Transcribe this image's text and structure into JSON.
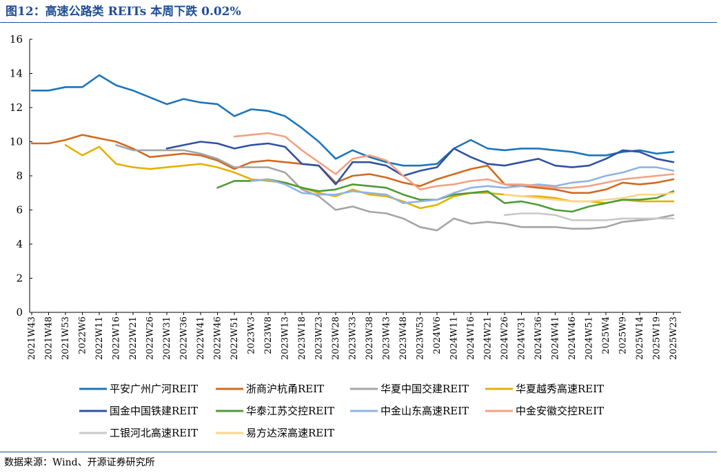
{
  "figure": {
    "title": "图12：高速公路类 REITs 本周下跌 0.02%",
    "source": "数据来源：Wind、开源证券研究所"
  },
  "chart_data": {
    "type": "line",
    "title": "",
    "xlabel": "",
    "ylabel": "",
    "ylim": [
      0,
      16
    ],
    "yticks": [
      0,
      2,
      4,
      6,
      8,
      10,
      12,
      14,
      16
    ],
    "grid": false,
    "legend_position": "bottom",
    "x": [
      "2021W43",
      "2021W48",
      "2021W53",
      "2022W6",
      "2022W11",
      "2022W16",
      "2022W21",
      "2022W26",
      "2022W31",
      "2022W36",
      "2022W41",
      "2022W46",
      "2022W51",
      "2023W3",
      "2023W8",
      "2023W13",
      "2023W18",
      "2023W23",
      "2023W28",
      "2023W33",
      "2023W38",
      "2023W43",
      "2023W48",
      "2023W53",
      "2024W6",
      "2024W11",
      "2024W16",
      "2024W21",
      "2024W26",
      "2024W31",
      "2024W36",
      "2024W41",
      "2024W46",
      "2024W51",
      "2025W4",
      "2025W9",
      "2025W14",
      "2025W19",
      "2025W23"
    ],
    "series": [
      {
        "name": "平安广州广河REIT",
        "color": "#1b75bb",
        "values": [
          13.0,
          13.0,
          13.2,
          13.2,
          13.9,
          13.3,
          13.0,
          12.6,
          12.2,
          12.5,
          12.3,
          12.2,
          11.5,
          11.9,
          11.8,
          11.5,
          10.8,
          10.0,
          9.0,
          9.5,
          9.1,
          8.8,
          8.6,
          8.6,
          8.7,
          9.6,
          10.1,
          9.6,
          9.5,
          9.6,
          9.6,
          9.5,
          9.4,
          9.2,
          9.2,
          9.4,
          9.5,
          9.3,
          9.4
        ]
      },
      {
        "name": "浙商沪杭甬REIT",
        "color": "#d2691e",
        "values": [
          9.9,
          9.9,
          10.1,
          10.4,
          10.2,
          10.0,
          9.6,
          9.1,
          9.2,
          9.3,
          9.2,
          8.9,
          8.4,
          8.8,
          8.9,
          8.8,
          8.7,
          8.6,
          7.6,
          8.0,
          8.1,
          7.9,
          7.6,
          7.4,
          7.8,
          8.1,
          8.4,
          8.6,
          7.5,
          7.4,
          7.3,
          7.2,
          7.0,
          7.0,
          7.2,
          7.6,
          7.5,
          7.6,
          7.8
        ]
      },
      {
        "name": "华夏中国交建REIT",
        "color": "#a5a5a5",
        "values": [
          null,
          null,
          null,
          null,
          null,
          9.8,
          9.5,
          9.5,
          9.5,
          9.5,
          9.3,
          9.0,
          8.5,
          8.5,
          8.5,
          8.2,
          7.2,
          6.8,
          6.0,
          6.2,
          5.9,
          5.8,
          5.5,
          5.0,
          4.8,
          5.5,
          5.2,
          5.3,
          5.2,
          5.0,
          5.0,
          5.0,
          4.9,
          4.9,
          5.0,
          5.3,
          5.4,
          5.5,
          5.7
        ]
      },
      {
        "name": "华夏越秀高速REIT",
        "color": "#e5b100",
        "values": [
          null,
          null,
          9.8,
          9.2,
          9.7,
          8.7,
          8.5,
          8.4,
          8.5,
          8.6,
          8.7,
          8.5,
          8.2,
          7.8,
          7.7,
          7.6,
          7.3,
          7.0,
          6.8,
          7.2,
          6.9,
          6.8,
          6.5,
          6.1,
          6.3,
          6.8,
          7.0,
          7.0,
          6.9,
          6.8,
          6.8,
          6.7,
          6.5,
          6.5,
          6.4,
          6.6,
          6.5,
          6.5,
          6.5
        ]
      },
      {
        "name": "国金中国铁建REIT",
        "color": "#2f52a0",
        "values": [
          null,
          null,
          null,
          null,
          null,
          null,
          null,
          null,
          9.6,
          9.8,
          10.0,
          9.9,
          9.6,
          9.8,
          9.9,
          9.7,
          8.7,
          8.6,
          7.5,
          8.8,
          8.8,
          8.6,
          8.0,
          8.3,
          8.5,
          9.6,
          9.1,
          8.7,
          8.6,
          8.8,
          9.0,
          8.6,
          8.5,
          8.6,
          9.0,
          9.5,
          9.4,
          9.0,
          8.8
        ]
      },
      {
        "name": "华泰江苏交控REIT",
        "color": "#4f9a36",
        "values": [
          null,
          null,
          null,
          null,
          null,
          null,
          null,
          null,
          null,
          null,
          null,
          7.3,
          7.7,
          7.7,
          7.8,
          7.6,
          7.3,
          7.1,
          7.2,
          7.5,
          7.4,
          7.3,
          6.9,
          6.6,
          6.6,
          6.9,
          7.0,
          7.1,
          6.4,
          6.5,
          6.3,
          6.0,
          5.9,
          6.2,
          6.4,
          6.6,
          6.6,
          6.7,
          7.1
        ]
      },
      {
        "name": "中金山东高速REIT",
        "color": "#8eb4e3",
        "values": [
          null,
          null,
          null,
          null,
          null,
          null,
          null,
          null,
          null,
          null,
          null,
          null,
          null,
          7.7,
          7.8,
          7.5,
          7.0,
          6.9,
          6.9,
          7.1,
          7.0,
          6.9,
          6.4,
          6.5,
          6.6,
          7.0,
          7.3,
          7.4,
          7.3,
          7.4,
          7.5,
          7.4,
          7.6,
          7.7,
          8.0,
          8.2,
          8.5,
          8.5,
          8.3
        ]
      },
      {
        "name": "中金安徽交控REIT",
        "color": "#f2a182",
        "values": [
          null,
          null,
          null,
          null,
          null,
          null,
          null,
          null,
          null,
          null,
          null,
          null,
          10.3,
          10.4,
          10.5,
          10.3,
          9.5,
          8.8,
          8.1,
          9.0,
          9.2,
          8.9,
          8.0,
          7.2,
          7.4,
          7.5,
          7.7,
          7.8,
          7.5,
          7.5,
          7.4,
          7.3,
          7.3,
          7.4,
          7.6,
          7.8,
          7.9,
          8.0,
          8.1
        ]
      },
      {
        "name": "工银河北高速REIT",
        "color": "#c8c8c8",
        "values": [
          null,
          null,
          null,
          null,
          null,
          null,
          null,
          null,
          null,
          null,
          null,
          null,
          null,
          null,
          null,
          null,
          null,
          null,
          null,
          null,
          null,
          null,
          null,
          null,
          null,
          null,
          null,
          null,
          5.7,
          5.8,
          5.8,
          5.7,
          5.4,
          5.4,
          5.4,
          5.5,
          5.5,
          5.5,
          5.5
        ]
      },
      {
        "name": "易方达深高速REIT",
        "color": "#fbd58a",
        "values": [
          null,
          null,
          null,
          null,
          null,
          null,
          null,
          null,
          null,
          null,
          null,
          null,
          null,
          null,
          null,
          null,
          null,
          null,
          null,
          null,
          null,
          null,
          null,
          null,
          null,
          null,
          null,
          null,
          6.9,
          6.8,
          6.7,
          6.6,
          6.5,
          6.5,
          6.6,
          6.7,
          6.9,
          6.9,
          7.0
        ]
      }
    ]
  }
}
